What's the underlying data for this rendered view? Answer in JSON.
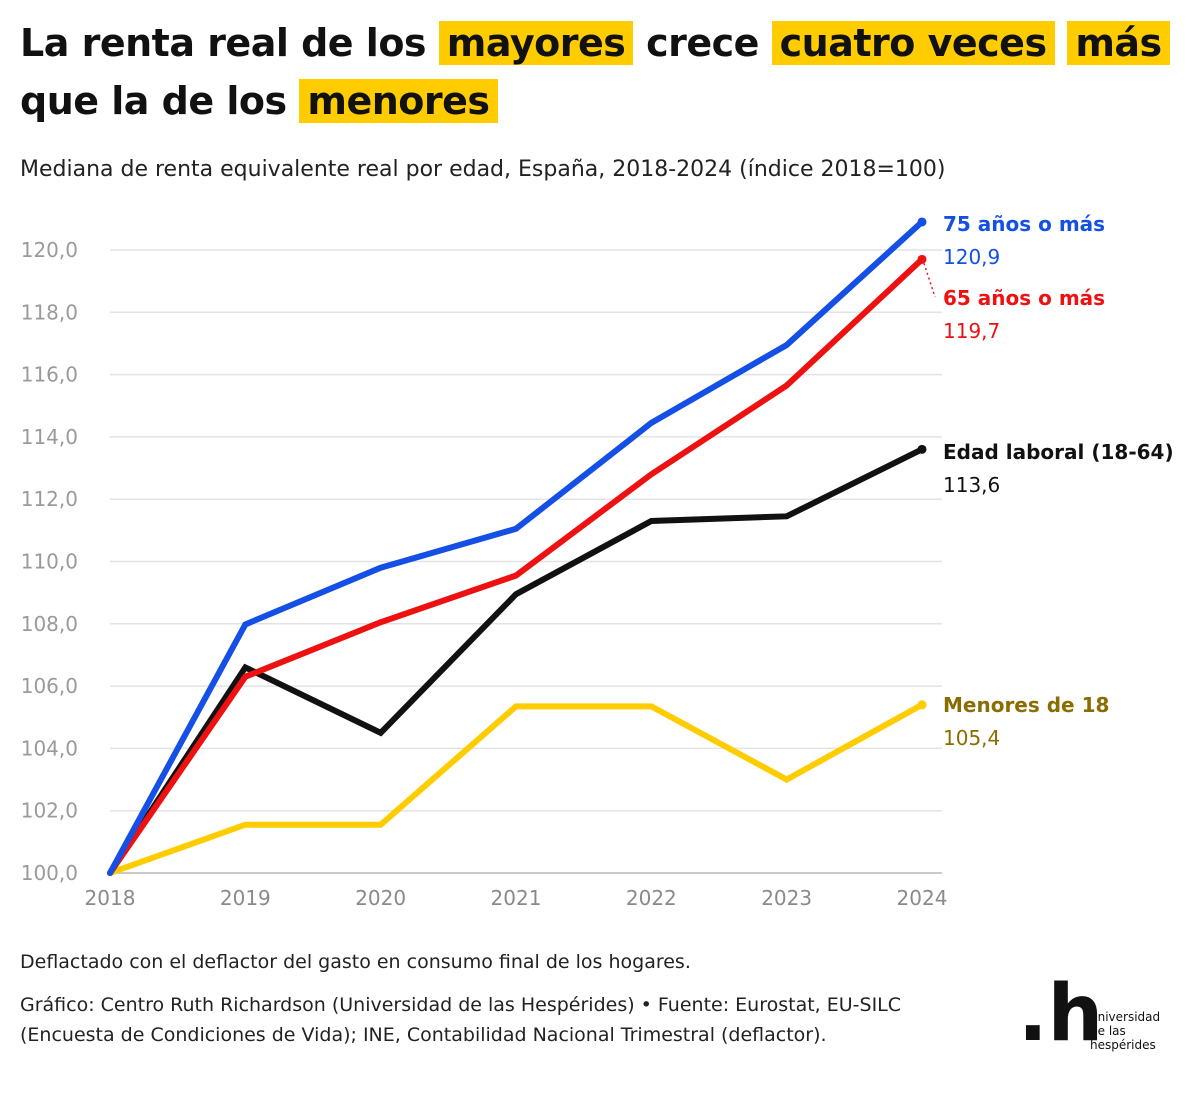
{
  "title": {
    "parts": [
      {
        "text": "La renta real de los ",
        "highlight": false
      },
      {
        "text": "mayores",
        "highlight": true
      },
      {
        "text": " crece ",
        "highlight": false
      },
      {
        "text": "cuatro veces",
        "highlight": true
      },
      {
        "text": " ",
        "highlight": false
      },
      {
        "text": "más",
        "highlight": true
      },
      {
        "text": " que la de los ",
        "highlight": false
      },
      {
        "text": "menores",
        "highlight": true
      }
    ],
    "highlight_color": "#ffcc00"
  },
  "subtitle": "Mediana de renta equivalente real por edad, España, 2018-2024 (índice 2018=100)",
  "chart_data": {
    "type": "line",
    "x": [
      "2018",
      "2019",
      "2020",
      "2021",
      "2022",
      "2023",
      "2024"
    ],
    "ylim": [
      100,
      121
    ],
    "yticks": [
      "100,0",
      "102,0",
      "104,0",
      "106,0",
      "108,0",
      "110,0",
      "112,0",
      "114,0",
      "116,0",
      "118,0",
      "120,0"
    ],
    "ytick_values": [
      100,
      102,
      104,
      106,
      108,
      110,
      112,
      114,
      116,
      118,
      120
    ],
    "grid": true,
    "series": [
      {
        "name": "Menores de 18",
        "color": "#ffcc00",
        "label_color": "#8a6d00",
        "values": [
          100.0,
          101.55,
          101.55,
          105.35,
          105.35,
          103.0,
          105.4
        ],
        "end_label": "105,4"
      },
      {
        "name": "Edad laboral (18-64)",
        "color": "#111111",
        "label_color": "#111111",
        "values": [
          100.0,
          106.6,
          104.5,
          108.95,
          111.3,
          111.45,
          113.6
        ],
        "end_label": "113,6"
      },
      {
        "name": "65 años o más",
        "color": "#ee1111",
        "label_color": "#ee1111",
        "values": [
          100.0,
          106.3,
          108.05,
          109.55,
          112.8,
          115.65,
          119.7
        ],
        "end_label": "119,7"
      },
      {
        "name": "75 años o más",
        "color": "#1450e6",
        "label_color": "#1450e6",
        "values": [
          100.0,
          107.98,
          109.8,
          111.05,
          114.45,
          116.95,
          120.9
        ],
        "end_label": "120,9"
      }
    ]
  },
  "footer": {
    "note": "Deflactado con el deflactor del gasto en consumo final de los hogares.",
    "source": "Gráfico: Centro Ruth Richardson (Universidad de las Hespérides) • Fuente: Eurostat, EU-SILC (Encuesta de Condiciones de Vida); INE, Contabilidad Nacional Trimestral (deflactor)."
  },
  "logo": {
    "mark": ".h",
    "lines": [
      "universidad",
      "de las",
      "hespérides"
    ]
  }
}
